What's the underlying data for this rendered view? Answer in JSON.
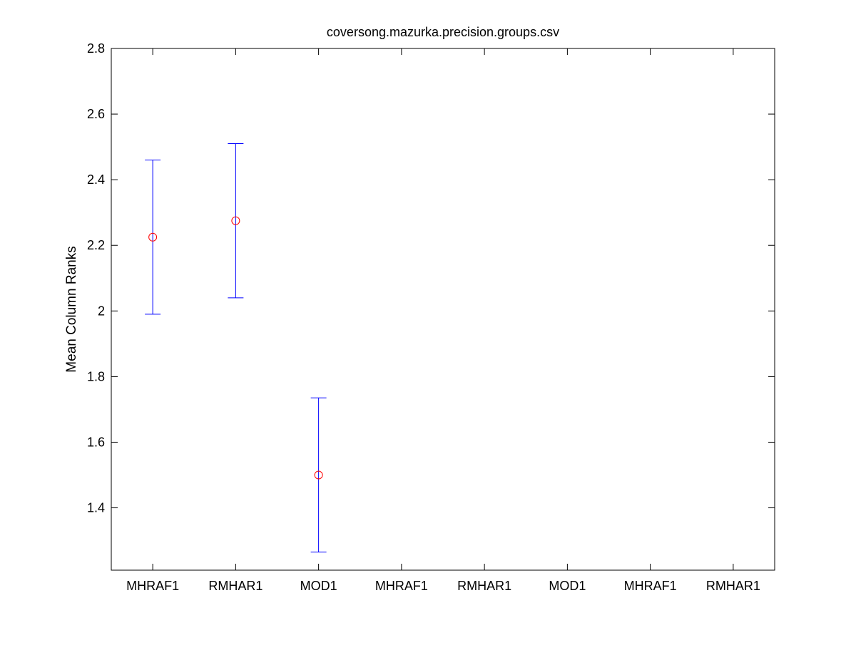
{
  "chart_data": {
    "type": "scatter",
    "title": "coversong.mazurka.precision.groups.csv",
    "xlabel": "",
    "ylabel": "Mean Column Ranks",
    "categories": [
      "MHRAF1",
      "RMHAR1",
      "MOD1",
      "MHRAF1",
      "RMHAR1",
      "MOD1",
      "MHRAF1",
      "RMHAR1"
    ],
    "ylim": [
      1.21,
      2.8
    ],
    "yticks": [
      1.4,
      1.6,
      1.8,
      2,
      2.2,
      2.4,
      2.6,
      2.8
    ],
    "ytick_labels": [
      "1.4",
      "1.6",
      "1.8",
      "2",
      "2.2",
      "2.4",
      "2.6",
      "2.8"
    ],
    "points": [
      {
        "category_index": 0,
        "mean": 2.225,
        "lower": 1.99,
        "upper": 2.46
      },
      {
        "category_index": 1,
        "mean": 2.275,
        "lower": 2.04,
        "upper": 2.51
      },
      {
        "category_index": 2,
        "mean": 1.5,
        "lower": 1.265,
        "upper": 1.735
      }
    ],
    "grid": false,
    "colors": {
      "marker": "#ff0000",
      "errorbar": "#0000ff",
      "axes": "#000000"
    }
  }
}
